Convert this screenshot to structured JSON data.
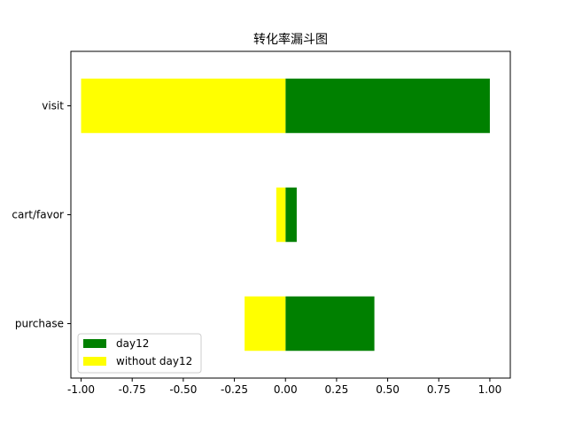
{
  "chart_data": {
    "type": "bar",
    "orientation": "horizontal",
    "title": "转化率漏斗图",
    "categories": [
      "visit",
      "cart/favor",
      "purchase"
    ],
    "series": [
      {
        "name": "day12",
        "color": "#008000",
        "values": [
          1.0,
          0.055,
          0.435
        ]
      },
      {
        "name": "without day12",
        "color": "#ffff00",
        "values": [
          -1.0,
          -0.045,
          -0.2
        ]
      }
    ],
    "xlim": [
      -1.05,
      1.1
    ],
    "xticks": [
      -1.0,
      -0.75,
      -0.5,
      -0.25,
      0.0,
      0.25,
      0.5,
      0.75,
      1.0
    ],
    "xtick_labels": [
      "-1.00",
      "-0.75",
      "-0.50",
      "-0.25",
      "0.00",
      "0.25",
      "0.50",
      "0.75",
      "1.00"
    ],
    "xlabel": "",
    "ylabel": "",
    "grid": false,
    "legend_position": "lower-left"
  }
}
